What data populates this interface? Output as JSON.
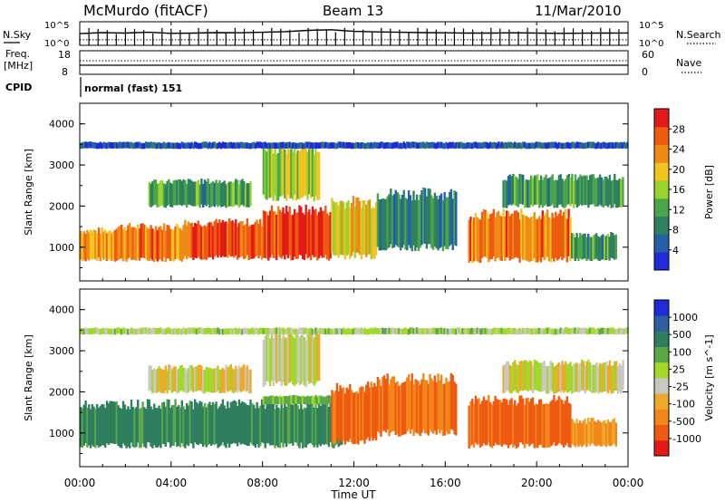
{
  "header": {
    "station": "McMurdo (fitACF)",
    "beam": "Beam 13",
    "date": "11/Mar/2010"
  },
  "status_panels": {
    "nsky_label": "N.Sky",
    "nsearch_label": "N.Search",
    "noise_ticks_left": [
      "10^5",
      "10^0"
    ],
    "noise_ticks_right": [
      "10^5",
      "10^0"
    ],
    "freq_label_1": "Freq.",
    "freq_label_2": "[MHz]",
    "freq_ticks": [
      "18",
      "8"
    ],
    "nave_label": "Nave",
    "nave_ticks": [
      "60",
      "0"
    ],
    "cpid_label": "CPID",
    "cpid_value": "normal (fast) 151"
  },
  "colors": {
    "power_scale": [
      "#1e2bd6",
      "#2460a8",
      "#2f8060",
      "#4ba64a",
      "#9ad22e",
      "#f2c422",
      "#f08a14",
      "#ee5a10",
      "#e21a1a"
    ],
    "velocity_scale": [
      "#1e2bd6",
      "#2f5fa0",
      "#2f7f5f",
      "#5aa848",
      "#a2d82a",
      "#c8c8c0",
      "#eea82a",
      "#f2861a",
      "#ee5a12",
      "#e21a1a"
    ]
  },
  "chart_data": [
    {
      "type": "line",
      "title": "N.Sky / N.Search",
      "y_scale": "log",
      "ylim": [
        1,
        100000
      ],
      "y_ticks": [
        "10^5",
        "10^0"
      ],
      "series": [
        {
          "name": "N.Sky",
          "x": [
            0,
            1,
            2,
            3,
            4,
            5,
            6,
            7,
            8,
            9,
            10,
            11,
            12,
            13,
            14,
            15,
            16,
            17,
            18,
            19,
            20,
            21,
            22,
            23,
            24
          ],
          "y": [
            300,
            500,
            400,
            600,
            350,
            400,
            500,
            450,
            600,
            800,
            1500,
            2000,
            900,
            700,
            600,
            500,
            450,
            400,
            400,
            450,
            400,
            350,
            380,
            400,
            420
          ]
        },
        {
          "name": "N.Search",
          "x": [
            0,
            4,
            8,
            12,
            16,
            20,
            24
          ],
          "y": [
            15,
            15,
            15,
            15,
            15,
            15,
            15
          ]
        }
      ]
    },
    {
      "type": "line",
      "title": "Freq. / Nave",
      "y_range_left": [
        8,
        18
      ],
      "y_range_right": [
        0,
        60
      ],
      "series": [
        {
          "name": "Freq.",
          "x": [
            0,
            24
          ],
          "y": [
            12,
            12
          ]
        },
        {
          "name": "Nave",
          "x": [
            0,
            24
          ],
          "y": [
            17,
            17
          ]
        }
      ]
    },
    {
      "type": "heatmap",
      "title": "Power",
      "ylabel": "Slant Range [km]",
      "xlabel": "Time UT",
      "x_ticks": [
        "00:00",
        "04:00",
        "08:00",
        "12:00",
        "16:00",
        "20:00",
        "00:00"
      ],
      "y_ticks": [
        "1000",
        "2000",
        "3000",
        "4000"
      ],
      "ylim": [
        180,
        4500
      ],
      "colorbar_label": "Power [dB]",
      "colorbar_ticks": [
        "4",
        "8",
        "12",
        "16",
        "20",
        "24",
        "28"
      ],
      "regions": [
        {
          "t0": 0.0,
          "t1": 1.5,
          "r0": 700,
          "r1": 1400,
          "value": 22
        },
        {
          "t0": 1.5,
          "t1": 4.5,
          "r0": 700,
          "r1": 1500,
          "value": 24
        },
        {
          "t0": 4.5,
          "t1": 8.0,
          "r0": 750,
          "r1": 1600,
          "value": 26
        },
        {
          "t0": 8.0,
          "t1": 11.0,
          "r0": 750,
          "r1": 1900,
          "value": 28
        },
        {
          "t0": 11.0,
          "t1": 13.0,
          "r0": 800,
          "r1": 2100,
          "value": 20
        },
        {
          "t0": 13.0,
          "t1": 16.5,
          "r0": 1000,
          "r1": 2300,
          "value": 10
        },
        {
          "t0": 17.0,
          "t1": 21.5,
          "r0": 700,
          "r1": 1800,
          "value": 24
        },
        {
          "t0": 21.5,
          "t1": 23.5,
          "r0": 700,
          "r1": 1300,
          "value": 12
        },
        {
          "t0": 3.0,
          "t1": 7.5,
          "r0": 2000,
          "r1": 2600,
          "value": 12
        },
        {
          "t0": 8.0,
          "t1": 10.5,
          "r0": 2200,
          "r1": 3400,
          "value": 16
        },
        {
          "t0": 18.5,
          "t1": 23.8,
          "r0": 2000,
          "r1": 2700,
          "value": 12
        },
        {
          "t0": 0.0,
          "t1": 24.0,
          "r0": 3400,
          "r1": 3550,
          "value": 6
        }
      ]
    },
    {
      "type": "heatmap",
      "title": "Velocity",
      "ylabel": "Slant Range [km]",
      "xlabel": "Time UT",
      "x_ticks": [
        "00:00",
        "04:00",
        "08:00",
        "12:00",
        "16:00",
        "20:00",
        "00:00"
      ],
      "y_ticks": [
        "1000",
        "2000",
        "3000",
        "4000"
      ],
      "ylim": [
        180,
        4500
      ],
      "colorbar_label": "Velocity [m s^-1]",
      "colorbar_ticks": [
        "1000",
        "500",
        "100",
        "25",
        "-25",
        "-100",
        "-500",
        "-1000"
      ],
      "regions": [
        {
          "t0": 0.0,
          "t1": 11.5,
          "r0": 700,
          "r1": 1700,
          "value": 300
        },
        {
          "t0": 8.0,
          "t1": 11.0,
          "r0": 1700,
          "r1": 1900,
          "value": 120
        },
        {
          "t0": 11.0,
          "t1": 13.0,
          "r0": 800,
          "r1": 2100,
          "value": -300
        },
        {
          "t0": 13.0,
          "t1": 16.5,
          "r0": 1000,
          "r1": 2300,
          "value": -250
        },
        {
          "t0": 17.0,
          "t1": 21.5,
          "r0": 700,
          "r1": 1800,
          "value": -300
        },
        {
          "t0": 21.5,
          "t1": 23.5,
          "r0": 700,
          "r1": 1300,
          "value": -120
        },
        {
          "t0": 3.0,
          "t1": 7.5,
          "r0": 2000,
          "r1": 2600,
          "value": 0
        },
        {
          "t0": 8.0,
          "t1": 10.5,
          "r0": 2200,
          "r1": 3400,
          "value": 0
        },
        {
          "t0": 18.5,
          "t1": 23.8,
          "r0": 2000,
          "r1": 2700,
          "value": 0
        },
        {
          "t0": 0.0,
          "t1": 24.0,
          "r0": 3400,
          "r1": 3550,
          "value": 50
        }
      ]
    }
  ]
}
